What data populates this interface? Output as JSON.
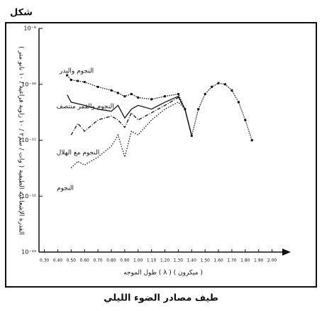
{
  "chart_data": {
    "type": "line",
    "label": "شكل",
    "title": "طيف مصادر الضوء الليلي",
    "x_label": "طول الموجه ( λ ) ( ميكرون )",
    "y_label": "القدرة الإشعاعية الطيفية ( وات / سم٢ / ١٠ زاوية فراغية / ١٠ نانو متر )",
    "log_y": true,
    "x": [
      0.47,
      0.5,
      0.55,
      0.6,
      0.7,
      0.8,
      0.85,
      0.9,
      0.95,
      1.0,
      1.1,
      1.2,
      1.3,
      1.35,
      1.4,
      1.45,
      1.5,
      1.55,
      1.6,
      1.65,
      1.7,
      1.75,
      1.8,
      1.85
    ],
    "series": [
      {
        "name": "النجوم والبدر",
        "color": "#111111",
        "line_style": "dotted-markers",
        "values": [
          1.45e-10,
          1.2e-10,
          1.15e-10,
          1.1e-10,
          9e-11,
          7.8e-11,
          7e-11,
          6.1e-11,
          6.7e-11,
          5.8e-11,
          5.4e-11,
          6.1e-11,
          6.7e-11,
          3.6e-11,
          1.2e-11,
          3.6e-11,
          6.7e-11,
          9e-11,
          1.05e-10,
          1e-10,
          7.8e-11,
          4.8e-11,
          2.3e-11,
          1e-11
        ]
      },
      {
        "name": "النجوم والقمر منتصف",
        "color": "#111111",
        "line_style": "solid",
        "values": [
          6.5e-11,
          4.8e-11,
          4.5e-11,
          4.2e-11,
          3.6e-11,
          3.3e-11,
          4.2e-11,
          2.5e-11,
          3.6e-11,
          4.2e-11,
          3.6e-11,
          4.8e-11,
          6.1e-11,
          3.6e-11,
          1.2e-11,
          null,
          null,
          null,
          null,
          null,
          null,
          null,
          null,
          null
        ]
      },
      {
        "name": "النجوم مع الهلال",
        "color": "#111111",
        "line_style": "dash-dot",
        "values": [
          null,
          1.24e-11,
          2e-11,
          1.45e-11,
          2.3e-11,
          2.7e-11,
          2.3e-11,
          1.7e-11,
          3.1e-11,
          2.3e-11,
          3.1e-11,
          4.2e-11,
          5.8e-11,
          3.6e-11,
          1.2e-11,
          null,
          null,
          null,
          null,
          null,
          null,
          null,
          null,
          null
        ]
      },
      {
        "name": "النجوم",
        "color": "#111111",
        "line_style": "dotted",
        "values": [
          null,
          3.2e-12,
          4.2e-12,
          3.6e-12,
          5e-12,
          7.8e-12,
          1.24e-11,
          5e-12,
          1.45e-11,
          1.24e-11,
          2.3e-11,
          3.6e-11,
          4.8e-11,
          3.6e-11,
          1.2e-11,
          null,
          null,
          null,
          null,
          null,
          null,
          null,
          null,
          null
        ]
      }
    ],
    "xlim": [
      0.26,
      2.14
    ],
    "ylim": [
      1e-13,
      1e-09
    ],
    "xticks": [
      {
        "value": 0.3,
        "label": "0.30"
      },
      {
        "value": 0.4,
        "label": "0.40"
      },
      {
        "value": 0.5,
        "label": "0.50"
      },
      {
        "value": 0.6,
        "label": "0.60"
      },
      {
        "value": 0.7,
        "label": "0.70"
      },
      {
        "value": 0.8,
        "label": "0.80"
      },
      {
        "value": 0.9,
        "label": "0.90"
      },
      {
        "value": 1.0,
        "label": "1.00"
      },
      {
        "value": 1.1,
        "label": "1.10"
      },
      {
        "value": 1.2,
        "label": "1.20"
      },
      {
        "value": 1.3,
        "label": "1.30"
      },
      {
        "value": 1.4,
        "label": "1.40"
      },
      {
        "value": 1.5,
        "label": "1.50"
      },
      {
        "value": 1.6,
        "label": "1.60"
      },
      {
        "value": 1.7,
        "label": "1.70"
      },
      {
        "value": 1.8,
        "label": "1.80"
      },
      {
        "value": 1.9,
        "label": "1.90"
      },
      {
        "value": 2.0,
        "label": "2.00"
      }
    ],
    "yticks": [
      {
        "value": 1e-13,
        "label": "10⁻¹³"
      },
      {
        "value": 1e-12,
        "label": "10⁻¹²"
      },
      {
        "value": 1e-11,
        "label": "10⁻¹¹"
      },
      {
        "value": 1e-10,
        "label": "10⁻¹⁰"
      },
      {
        "value": 1e-09,
        "label": "10⁻⁹"
      }
    ]
  }
}
